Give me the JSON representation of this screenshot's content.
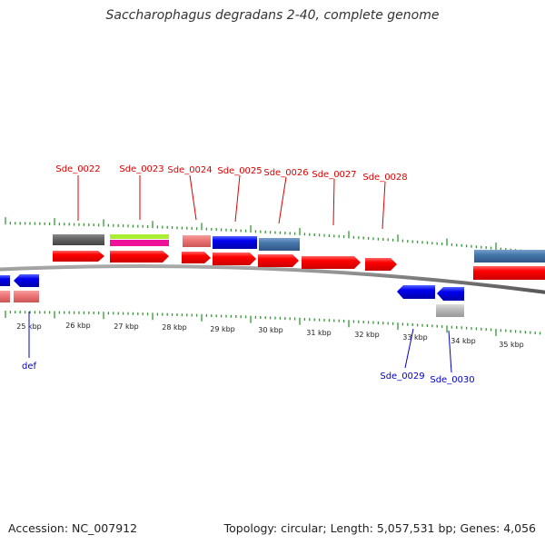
{
  "title": "Saccharophagus degradans 2-40, complete genome",
  "footer": {
    "accession": "Accession: NC_007912",
    "summary": "Topology: circular; Length: 5,057,531 bp; Genes: 4,056"
  },
  "scale": {
    "unit": "kbp",
    "labels": [
      "25 kbp",
      "26 kbp",
      "27 kbp",
      "28 kbp",
      "29 kbp",
      "30 kbp",
      "31 kbp",
      "32 kbp",
      "33 kbp",
      "34 kbp",
      "35 kbp"
    ]
  },
  "colors": {
    "label_forward": "#dd0000",
    "label_reverse": "#0000cc",
    "tick": "#339933",
    "backbone": "#888888"
  },
  "genes_forward": [
    {
      "name": "Sde_0022",
      "cds_color": "#ff0000",
      "feature_color": "#666666"
    },
    {
      "name": "Sde_0023",
      "cds_color": "#ff0000",
      "feature_color": "#aaee33"
    },
    {
      "name": "Sde_0024",
      "cds_color": "#ff0000",
      "feature_color": "#ee7777"
    },
    {
      "name": "Sde_0025",
      "cds_color": "#ff0000",
      "feature_color": "#0000ee"
    },
    {
      "name": "Sde_0026",
      "cds_color": "#ff0000",
      "feature_color": "#4477aa"
    },
    {
      "name": "Sde_0027",
      "cds_color": "#ff0000",
      "feature_color": ""
    },
    {
      "name": "Sde_0028",
      "cds_color": "#ff0000",
      "feature_color": ""
    }
  ],
  "genes_reverse": [
    {
      "name": "def",
      "cds_color": "#0000ee",
      "feature_color": "#ee7777"
    },
    {
      "name": "Sde_0029",
      "cds_color": "#0000ee",
      "feature_color": ""
    },
    {
      "name": "Sde_0030",
      "cds_color": "#0000ee",
      "feature_color": "#bbbbbb"
    }
  ],
  "gene_colors_extra": {
    "magenta_band": "#ee1199",
    "steelblue": "#4477aa"
  }
}
